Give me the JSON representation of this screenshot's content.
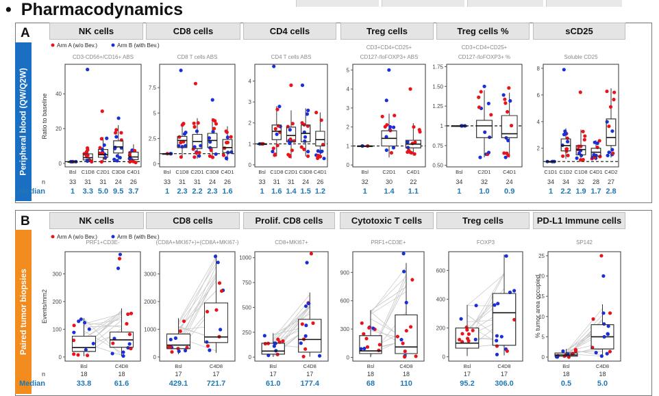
{
  "title": "Pharmacodynamics",
  "legend": {
    "arm_a": "Arm A (w/o Bev.)",
    "arm_b": "Arm B (with Bev.)",
    "color_a": "#e8141c",
    "color_b": "#1a2fd8"
  },
  "panel_a": {
    "label": "A",
    "side": "Peripheral blood (QW/Q2W)",
    "side_color": "#1b6fc2",
    "n_label": "n",
    "median_label": "Median",
    "ylabel": "Ratio to baseline",
    "headers": [
      "NK cells",
      "CD8 cells",
      "CD4 cells",
      "Treg cells",
      "Treg cells %",
      "sCD25"
    ]
  },
  "panel_b": {
    "label": "B",
    "side": "Paired tumor biopsies",
    "side_color": "#f28c1e",
    "n_label": "n",
    "median_label": "Median",
    "ylabel": "Events/mm2",
    "headers": [
      "NK cells",
      "CD8 cells",
      "Prolif. CD8 cells",
      "Cytotoxic T cells",
      "Treg cells",
      "PD-L1 Immune cells"
    ]
  },
  "chart_data": [
    {
      "type": "box",
      "subtitle": [
        "CD3-CD56+/CD16+ ABS"
      ],
      "categories": [
        "Bsl",
        "C1D8",
        "C2D1",
        "C3D8",
        "C4D1"
      ],
      "ylim": [
        -2,
        57
      ],
      "yticks": [
        0,
        20,
        40
      ],
      "medians": [
        1,
        3.3,
        5.0,
        9.5,
        3.7
      ],
      "n": [
        "33",
        "31",
        "31",
        "24",
        "26"
      ],
      "median_text": [
        "1",
        "3.3",
        "5.0",
        "9.5",
        "3.7"
      ],
      "q1": [
        1,
        2.0,
        3.5,
        6,
        2.2
      ],
      "q3": [
        1,
        5.5,
        8,
        13,
        6.5
      ],
      "wl": [
        1,
        0.8,
        0.8,
        1.5,
        0.5
      ],
      "wh": [
        1,
        9,
        15,
        22,
        11
      ],
      "outliers": [
        54,
        30,
        26
      ]
    },
    {
      "type": "box",
      "subtitle": [
        "CD8 T cells ABS"
      ],
      "categories": [
        "Bsl",
        "C1D8",
        "C2D1",
        "C3D8",
        "C4D1"
      ],
      "ylim": [
        -0.3,
        9.8
      ],
      "yticks": [
        0,
        2.5,
        5.0,
        7.5
      ],
      "medians": [
        1,
        2.3,
        2.2,
        2.3,
        1.6
      ],
      "n": [
        "33",
        "31",
        "31",
        "24",
        "26"
      ],
      "median_text": [
        "1",
        "2.3",
        "2.2",
        "2.3",
        "1.6"
      ],
      "q1": [
        1,
        1.6,
        1.5,
        1.6,
        1.1
      ],
      "q3": [
        1,
        2.7,
        2.9,
        3.0,
        2.4
      ],
      "wl": [
        1,
        0.6,
        0.5,
        0.6,
        0.3
      ],
      "wh": [
        1,
        4.0,
        4.5,
        4.5,
        3.7
      ],
      "outliers": [
        9.2,
        7.9,
        6.3
      ]
    },
    {
      "type": "box",
      "subtitle": [
        "CD4 T cells ABS"
      ],
      "categories": [
        "Bsl",
        "C1D8",
        "C2D1",
        "C3D8",
        "C4D1"
      ],
      "ylim": [
        -0.1,
        4.8
      ],
      "yticks": [
        0,
        1,
        2,
        3,
        4
      ],
      "medians": [
        1,
        1.6,
        1.4,
        1.5,
        1.2
      ],
      "n": [
        "33",
        "31",
        "31",
        "24",
        "26"
      ],
      "median_text": [
        "1",
        "1.6",
        "1.4",
        "1.5",
        "1.2"
      ],
      "q1": [
        1,
        1.2,
        1.1,
        1.1,
        0.9
      ],
      "q3": [
        1,
        1.9,
        1.8,
        1.9,
        1.6
      ],
      "wl": [
        1,
        0.4,
        0.3,
        0.4,
        0.3
      ],
      "wh": [
        1,
        2.8,
        2.6,
        2.7,
        2.5
      ],
      "outliers": [
        4.7,
        3.8,
        3.8
      ]
    },
    {
      "type": "box",
      "subtitle": [
        "CD3+CD4+CD25+",
        "CD127-/loFOXP3+ ABS"
      ],
      "categories": [
        "Bsl",
        "C2D1",
        "C4D1"
      ],
      "ylim": [
        -0.1,
        5.3
      ],
      "yticks": [
        0,
        1,
        2,
        3,
        4,
        5
      ],
      "medians": [
        1,
        1.4,
        1.1
      ],
      "n": [
        "32",
        "30",
        "22"
      ],
      "median_text": [
        "1",
        "1.4",
        "1.1"
      ],
      "q1": [
        1,
        1.0,
        0.9
      ],
      "q3": [
        1,
        1.8,
        1.3
      ],
      "wl": [
        1,
        0.4,
        0.5
      ],
      "wh": [
        1,
        2.7,
        2.2
      ],
      "outliers": [
        5.0,
        4.0,
        3.4
      ]
    },
    {
      "type": "box",
      "subtitle": [
        "CD3+CD4+CD25+",
        "CD127-/loFOXP3+ %"
      ],
      "categories": [
        "Bsl",
        "C2D1",
        "C4D1"
      ],
      "ylim": [
        0.48,
        1.78
      ],
      "yticks": [
        0.5,
        0.75,
        1.0,
        1.25,
        1.5,
        1.75
      ],
      "medians": [
        1,
        1.0,
        0.9
      ],
      "n": [
        "34",
        "32",
        "24"
      ],
      "median_text": [
        "1",
        "1.0",
        "0.9"
      ],
      "q1": [
        1,
        0.85,
        0.85
      ],
      "q3": [
        1,
        1.07,
        1.13
      ],
      "wl": [
        1,
        0.6,
        0.6
      ],
      "wh": [
        1,
        1.45,
        1.42
      ],
      "outliers": [
        1.5,
        1.48
      ]
    },
    {
      "type": "box",
      "subtitle": [
        "Soluble CD25"
      ],
      "categories": [
        "C1D1",
        "C1D2",
        "C1D8",
        "C4D1",
        "C4D2"
      ],
      "ylim": [
        0.6,
        8.3
      ],
      "yticks": [
        2,
        4,
        6,
        8
      ],
      "medians": [
        1,
        2.2,
        1.9,
        1.7,
        2.8
      ],
      "n": [
        "34",
        "34",
        "32",
        "28",
        "27"
      ],
      "median_text": [
        "1",
        "2.2",
        "1.9",
        "1.7",
        "2.8"
      ],
      "q1": [
        1,
        1.8,
        1.5,
        1.4,
        2.2
      ],
      "q3": [
        1,
        2.7,
        2.2,
        2.0,
        4.2
      ],
      "wl": [
        1,
        1.2,
        1.1,
        1.1,
        1.3
      ],
      "wh": [
        1,
        3.5,
        3.4,
        2.6,
        6.5
      ],
      "outliers": [
        7.9,
        6.2
      ]
    },
    {
      "type": "box",
      "subtitle": [
        "PRF1+CD3E-"
      ],
      "categories": [
        "Bsl",
        "C4D8"
      ],
      "ylim": [
        -15,
        380
      ],
      "yticks": [
        0,
        100,
        200,
        300
      ],
      "medians": [
        33.8,
        61.6
      ],
      "n": [
        "18",
        "18"
      ],
      "median_text": [
        "33.8",
        "61.6"
      ],
      "q1": [
        20,
        35
      ],
      "q3": [
        75,
        90
      ],
      "wl": [
        3,
        3
      ],
      "wh": [
        140,
        175
      ],
      "outliers": [
        370,
        355,
        320
      ]
    },
    {
      "type": "box",
      "subtitle": [
        "(CD8A+MKI67+)+(CD8A+MKI67-)"
      ],
      "categories": [
        "Bsl",
        "C4D8"
      ],
      "ylim": [
        -150,
        3800
      ],
      "yticks": [
        0,
        1000,
        2000,
        3000
      ],
      "medians": [
        429.1,
        721.7
      ],
      "n": [
        "17",
        "17"
      ],
      "median_text": [
        "429.1",
        "721.7"
      ],
      "q1": [
        300,
        520
      ],
      "q3": [
        830,
        1950
      ],
      "wl": [
        100,
        150
      ],
      "wh": [
        1400,
        3700
      ],
      "outliers": []
    },
    {
      "type": "box",
      "subtitle": [
        "CD8+MKI67+"
      ],
      "categories": [
        "Bsl",
        "C4D8"
      ],
      "ylim": [
        -40,
        1060
      ],
      "yticks": [
        0,
        250,
        500,
        750,
        1000
      ],
      "medians": [
        61.0,
        177.4
      ],
      "n": [
        "17",
        "17"
      ],
      "median_text": [
        "61.0",
        "177.4"
      ],
      "q1": [
        30,
        50
      ],
      "q3": [
        140,
        380
      ],
      "wl": [
        3,
        5
      ],
      "wh": [
        240,
        650
      ],
      "outliers": [
        540,
        1040,
        950
      ]
    },
    {
      "type": "box",
      "subtitle": [
        "PRF1+CD3E+"
      ],
      "categories": [
        "Bsl",
        "C4D8"
      ],
      "ylim": [
        -40,
        1120
      ],
      "yticks": [
        0,
        300,
        600,
        900
      ],
      "medians": [
        68,
        110
      ],
      "n": [
        "18",
        "18"
      ],
      "median_text": [
        "68",
        "110"
      ],
      "q1": [
        40,
        40
      ],
      "q3": [
        230,
        450
      ],
      "wl": [
        3,
        5
      ],
      "wh": [
        500,
        1000
      ],
      "outliers": [
        1100
      ]
    },
    {
      "type": "box",
      "subtitle": [
        "FOXP3"
      ],
      "categories": [
        "Bsl",
        "C4D8"
      ],
      "ylim": [
        -30,
        730
      ],
      "yticks": [
        0,
        200,
        400,
        600
      ],
      "medians": [
        95.2,
        306.0
      ],
      "n": [
        "17",
        "17"
      ],
      "median_text": [
        "95.2",
        "306.0"
      ],
      "q1": [
        60,
        80
      ],
      "q3": [
        200,
        440
      ],
      "wl": [
        5,
        10
      ],
      "wh": [
        360,
        710
      ],
      "outliers": [
        700
      ]
    },
    {
      "type": "box",
      "subtitle": [
        "SP142"
      ],
      "categories": [
        "Bsl",
        "C4D8"
      ],
      "ylim": [
        -1,
        26
      ],
      "yticks": [
        0,
        5,
        10,
        15,
        20,
        25
      ],
      "medians": [
        0.5,
        5.0
      ],
      "n": [
        "18",
        "18"
      ],
      "median_text": [
        "0.5",
        "5.0"
      ],
      "q1": [
        0.2,
        2
      ],
      "q3": [
        1,
        8
      ],
      "wl": [
        0,
        0
      ],
      "wh": [
        2,
        13
      ],
      "outliers": [
        5,
        25,
        20
      ]
    }
  ],
  "extra_labels": {
    "ylabel_pd": "% tumor area occupied"
  }
}
